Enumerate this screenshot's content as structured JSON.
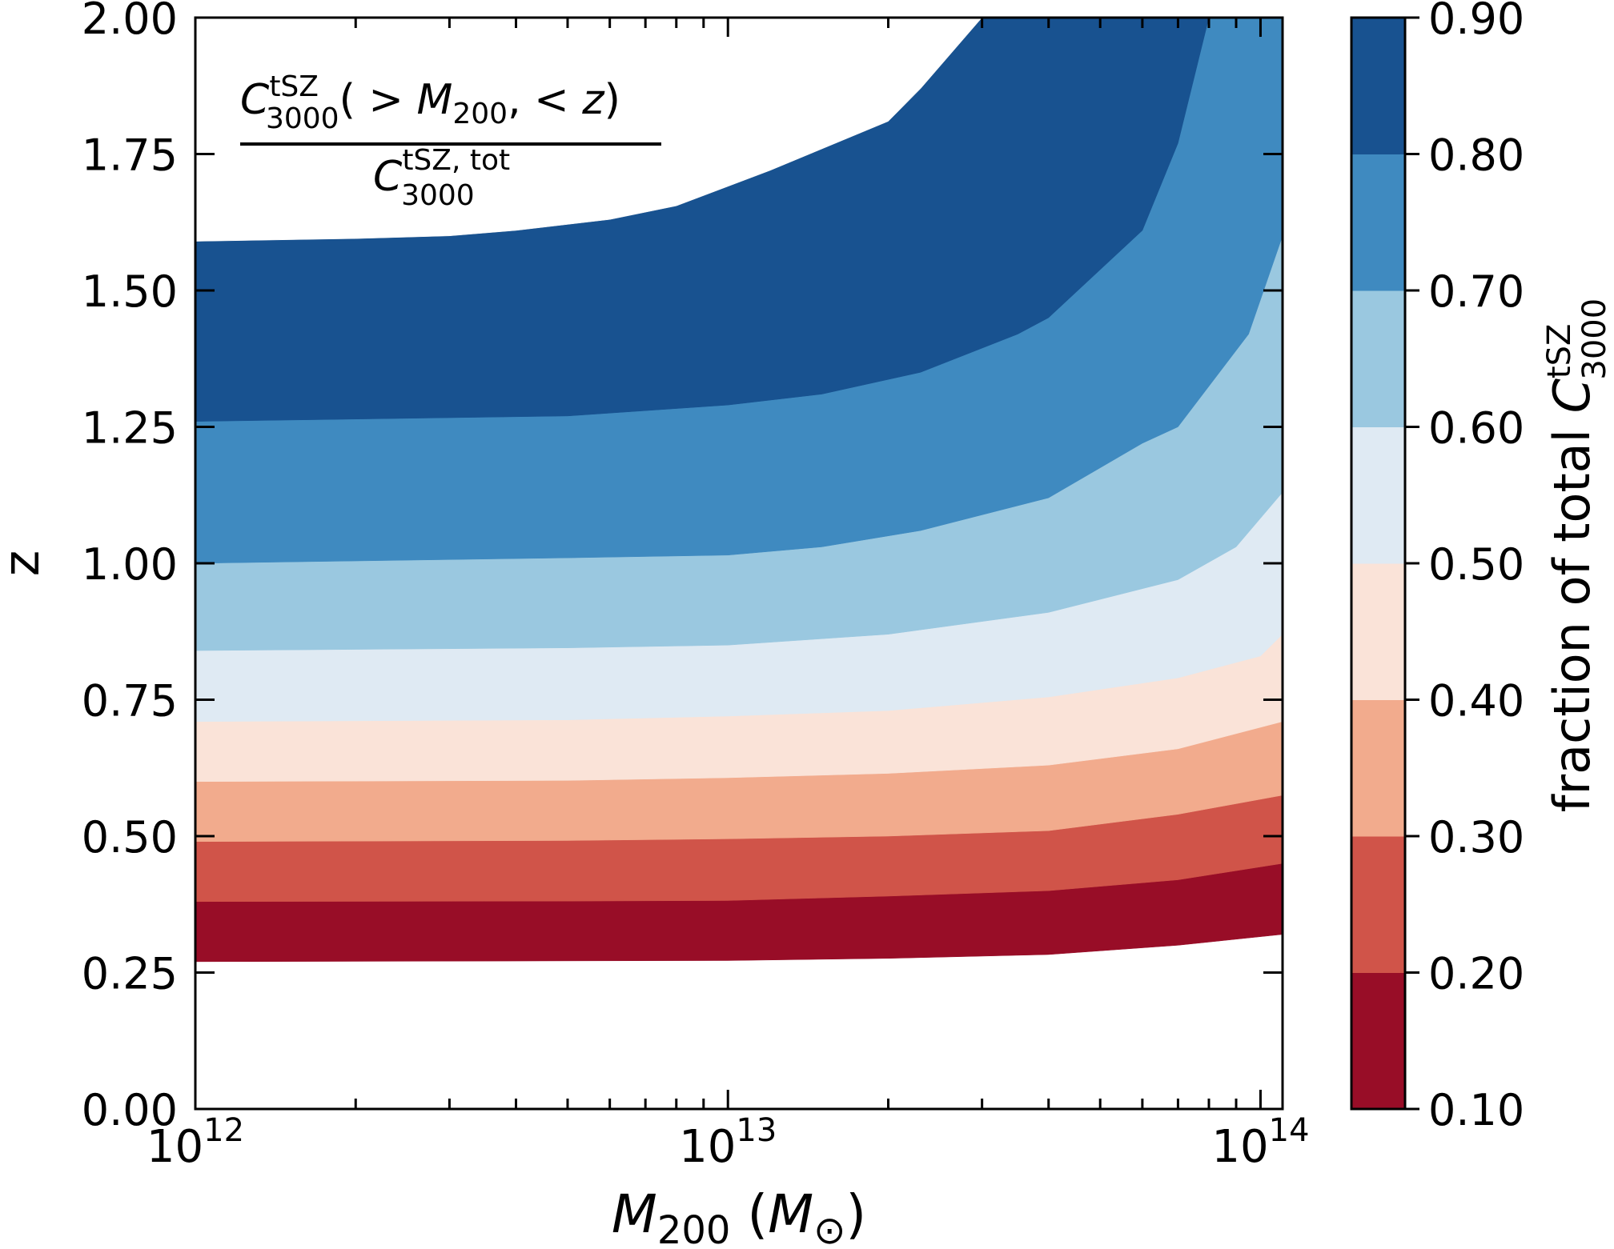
{
  "chart_data": {
    "type": "filled-contour",
    "title": "",
    "xlabel": "M_200 (M_⊙)",
    "ylabel": "z",
    "xscale": "log",
    "xlim": [
      1000000000000.0,
      110000000000000.0
    ],
    "ylim": [
      0.0,
      2.0
    ],
    "x_tick_labels": [
      {
        "base": "10",
        "exp": "12",
        "value": 1000000000000.0
      },
      {
        "base": "10",
        "exp": "13",
        "value": 10000000000000.0
      },
      {
        "base": "10",
        "exp": "14",
        "value": 100000000000000.0
      }
    ],
    "y_ticks": [
      0.0,
      0.25,
      0.5,
      0.75,
      1.0,
      1.25,
      1.5,
      1.75,
      2.0
    ],
    "y_tick_labels": [
      "0.00",
      "0.25",
      "0.50",
      "0.75",
      "1.00",
      "1.25",
      "1.50",
      "1.75",
      "2.00"
    ],
    "annotation": {
      "numerator": "C^tSZ_3000( > M_200, < z)",
      "denominator": "C^{tSZ, tot}_3000"
    },
    "colorbar": {
      "label": "fraction of total C^tSZ_3000",
      "levels": [
        0.1,
        0.2,
        0.3,
        0.4,
        0.5,
        0.6,
        0.7,
        0.8,
        0.9
      ],
      "tick_labels": [
        "0.10",
        "0.20",
        "0.30",
        "0.40",
        "0.50",
        "0.60",
        "0.70",
        "0.80",
        "0.90"
      ],
      "colors": [
        "#980d27",
        "#d05449",
        "#f2ab8d",
        "#fae3d8",
        "#dfeaf3",
        "#9ac8e0",
        "#3f8ac0",
        "#185290"
      ]
    },
    "contours": [
      {
        "level": 0.1,
        "points": [
          [
            1000000000000.0,
            0.27
          ],
          [
            10000000000000.0,
            0.272
          ],
          [
            20000000000000.0,
            0.276
          ],
          [
            40000000000000.0,
            0.283
          ],
          [
            70000000000000.0,
            0.3
          ],
          [
            110000000000000.0,
            0.32
          ]
        ]
      },
      {
        "level": 0.2,
        "points": [
          [
            1000000000000.0,
            0.38
          ],
          [
            5000000000000.0,
            0.381
          ],
          [
            10000000000000.0,
            0.382
          ],
          [
            20000000000000.0,
            0.39
          ],
          [
            40000000000000.0,
            0.4
          ],
          [
            70000000000000.0,
            0.42
          ],
          [
            110000000000000.0,
            0.45
          ]
        ]
      },
      {
        "level": 0.3,
        "points": [
          [
            1000000000000.0,
            0.49
          ],
          [
            5000000000000.0,
            0.492
          ],
          [
            10000000000000.0,
            0.495
          ],
          [
            20000000000000.0,
            0.5
          ],
          [
            40000000000000.0,
            0.51
          ],
          [
            70000000000000.0,
            0.54
          ],
          [
            110000000000000.0,
            0.575
          ]
        ]
      },
      {
        "level": 0.4,
        "points": [
          [
            1000000000000.0,
            0.6
          ],
          [
            5000000000000.0,
            0.602
          ],
          [
            10000000000000.0,
            0.607
          ],
          [
            20000000000000.0,
            0.615
          ],
          [
            40000000000000.0,
            0.63
          ],
          [
            70000000000000.0,
            0.66
          ],
          [
            110000000000000.0,
            0.71
          ]
        ]
      },
      {
        "level": 0.5,
        "points": [
          [
            1000000000000.0,
            0.71
          ],
          [
            5000000000000.0,
            0.713
          ],
          [
            10000000000000.0,
            0.72
          ],
          [
            20000000000000.0,
            0.73
          ],
          [
            40000000000000.0,
            0.755
          ],
          [
            70000000000000.0,
            0.79
          ],
          [
            100000000000000.0,
            0.83
          ],
          [
            110000000000000.0,
            0.87
          ]
        ]
      },
      {
        "level": 0.6,
        "points": [
          [
            1000000000000.0,
            0.84
          ],
          [
            5000000000000.0,
            0.845
          ],
          [
            10000000000000.0,
            0.85
          ],
          [
            20000000000000.0,
            0.87
          ],
          [
            40000000000000.0,
            0.91
          ],
          [
            70000000000000.0,
            0.97
          ],
          [
            90000000000000.0,
            1.03
          ],
          [
            110000000000000.0,
            1.13
          ]
        ]
      },
      {
        "level": 0.7,
        "points": [
          [
            1000000000000.0,
            1.0
          ],
          [
            5000000000000.0,
            1.01
          ],
          [
            10000000000000.0,
            1.015
          ],
          [
            15000000000000.0,
            1.03
          ],
          [
            23000000000000.0,
            1.06
          ],
          [
            40000000000000.0,
            1.12
          ],
          [
            60000000000000.0,
            1.22
          ],
          [
            70000000000000.0,
            1.25
          ],
          [
            95000000000000.0,
            1.42
          ],
          [
            110000000000000.0,
            1.6
          ]
        ]
      },
      {
        "level": 0.8,
        "points": [
          [
            1000000000000.0,
            1.26
          ],
          [
            5000000000000.0,
            1.27
          ],
          [
            10000000000000.0,
            1.29
          ],
          [
            15000000000000.0,
            1.31
          ],
          [
            23000000000000.0,
            1.35
          ],
          [
            35000000000000.0,
            1.42
          ],
          [
            40000000000000.0,
            1.45
          ],
          [
            60000000000000.0,
            1.61
          ],
          [
            70000000000000.0,
            1.77
          ],
          [
            80000000000000.0,
            2.0
          ]
        ]
      },
      {
        "level": 0.9,
        "points": [
          [
            1000000000000.0,
            1.59
          ],
          [
            2000000000000.0,
            1.595
          ],
          [
            3000000000000.0,
            1.6
          ],
          [
            4000000000000.0,
            1.61
          ],
          [
            6000000000000.0,
            1.63
          ],
          [
            8000000000000.0,
            1.655
          ],
          [
            12000000000000.0,
            1.72
          ],
          [
            20000000000000.0,
            1.81
          ],
          [
            23000000000000.0,
            1.87
          ],
          [
            30000000000000.0,
            2.0
          ]
        ]
      }
    ]
  }
}
